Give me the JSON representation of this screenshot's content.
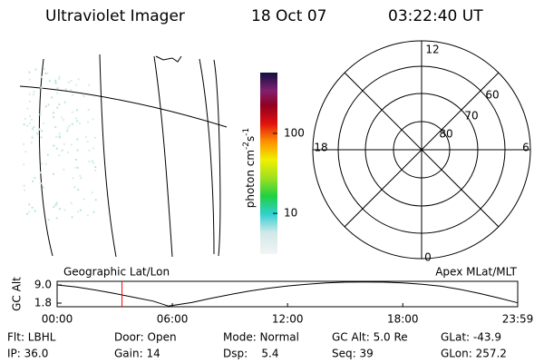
{
  "header": {
    "title": "Ultraviolet Imager",
    "date": "18 Oct 07",
    "time": "03:22:40 UT"
  },
  "colorbar": {
    "label_parts": [
      "photon cm",
      "-2",
      "s",
      "-1"
    ],
    "lim": [
      3.1,
      575
    ],
    "log": true,
    "ticks": [
      10,
      100
    ]
  },
  "polar": {
    "mlt_labels": {
      "top": "12",
      "right": "6",
      "bottom": "0",
      "left": "18"
    },
    "lat_labels": [
      "80",
      "70",
      "60"
    ]
  },
  "chart_data": {
    "type": "line",
    "ylabel": "GC Alt",
    "annotations": [
      "Geographic Lat/Lon",
      "Apex MLat/MLT"
    ],
    "x": [
      0,
      1,
      2,
      3,
      4,
      5,
      5.8,
      7,
      8,
      9,
      10,
      11,
      12,
      13,
      14,
      15,
      16,
      17,
      18,
      19,
      20,
      21,
      22,
      23,
      23.983
    ],
    "values": [
      9.0,
      8.2,
      7.0,
      5.6,
      4.1,
      2.6,
      0.6,
      2.0,
      3.7,
      5.2,
      6.6,
      7.7,
      8.6,
      9.3,
      9.8,
      10.1,
      10.2,
      10.1,
      9.8,
      9.3,
      8.5,
      7.2,
      5.6,
      3.8,
      1.9
    ],
    "color": "#000000",
    "current_time": 3.378,
    "current_color": "#ff0000",
    "xlim": [
      0,
      23.983
    ],
    "ylim": [
      0.36,
      10.44
    ],
    "xticks": [
      {
        "value": 0,
        "label": "00:00"
      },
      {
        "value": 6,
        "label": "06:00"
      },
      {
        "value": 12,
        "label": "12:00"
      },
      {
        "value": 18,
        "label": "18:00"
      },
      {
        "value": 23.983,
        "label": "23:59"
      }
    ],
    "yticks": [
      {
        "value": 1.8,
        "label": "1.8"
      },
      {
        "value": 9,
        "label": "9.0"
      }
    ]
  },
  "footer": {
    "rows": [
      [
        "Flt: LBHL",
        "Door: Open",
        "Mode: Normal",
        "GC Alt: 5.0 Re",
        "GLat: -43.9"
      ],
      [
        "IP: 36.0",
        "Gain: 14",
        "Dsp:    5.4",
        "Seq: 39",
        "GLon: 257.2"
      ]
    ]
  }
}
